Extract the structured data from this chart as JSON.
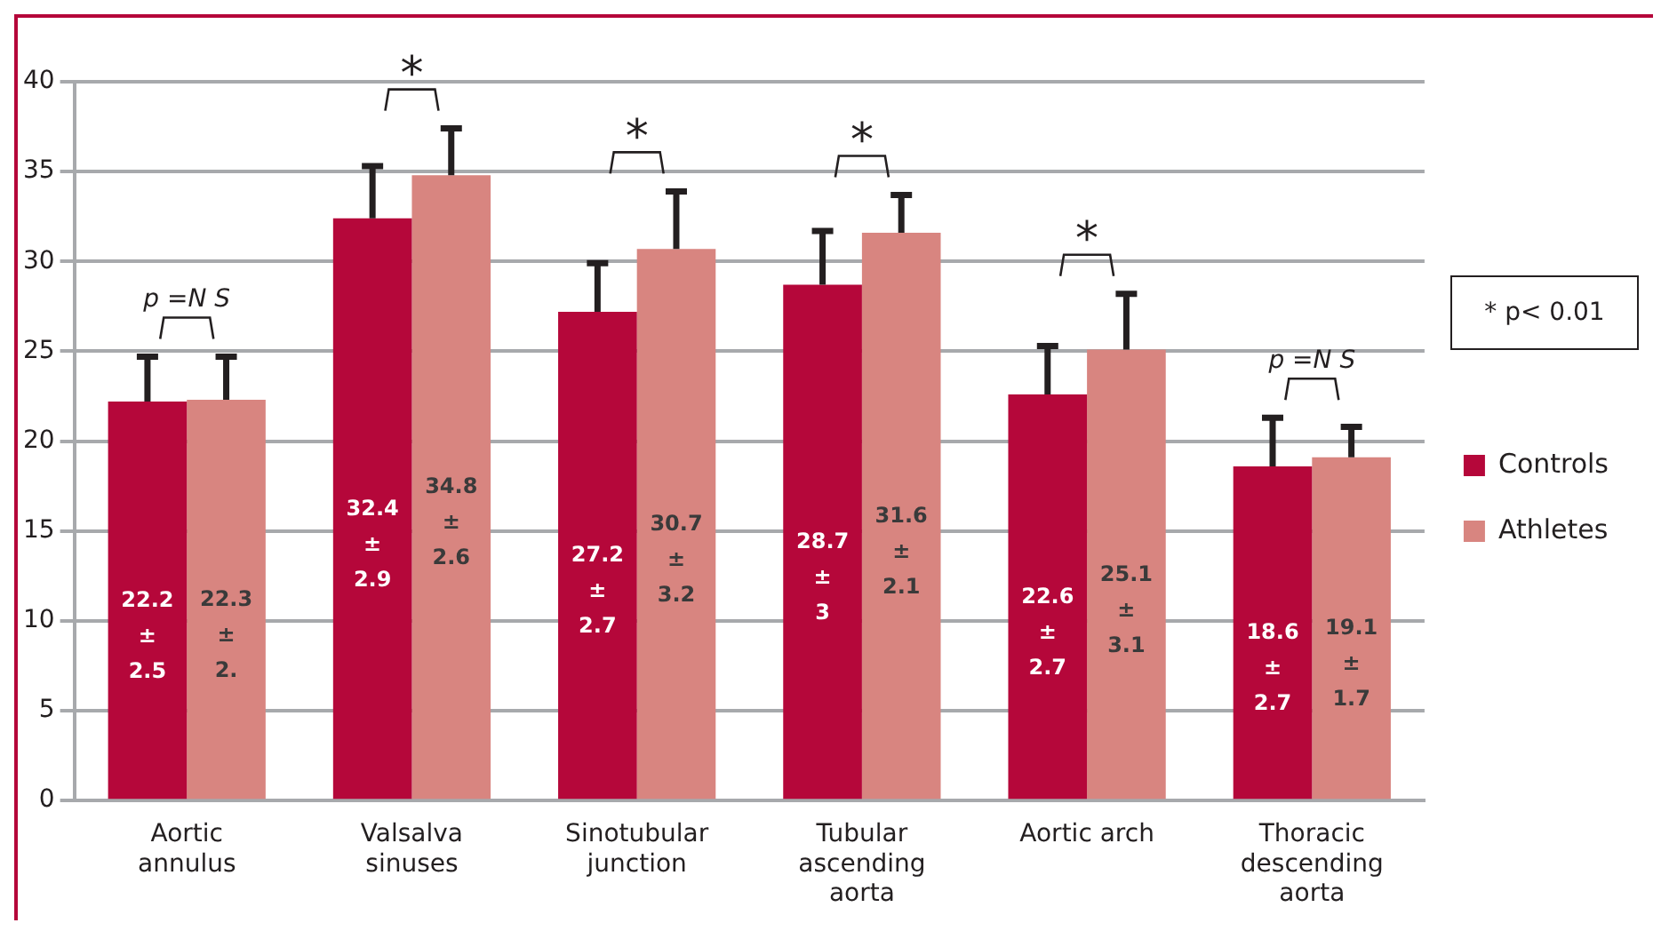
{
  "chart_data": {
    "type": "bar",
    "categories": [
      "Aortic annulus",
      "Valsalva sinuses",
      "Sinotubular junction",
      "Tubular ascending aorta",
      "Aortic arch",
      "Thoracic descending aorta"
    ],
    "series": [
      {
        "name": "Controls",
        "color": "#b5073a",
        "values": [
          22.2,
          32.4,
          27.2,
          28.7,
          22.6,
          18.6
        ],
        "errors": [
          [
            22.2,
            24.7
          ],
          [
            32.4,
            35.3
          ],
          [
            27.2,
            29.9
          ],
          [
            28.7,
            31.7
          ],
          [
            22.6,
            25.3
          ],
          [
            18.6,
            21.3
          ]
        ],
        "value_labels": [
          "22.2 ± 2.5",
          "32.4 ± 2.9",
          "27.2 ± 2.7",
          "28.7 ± 3",
          "22.6 ± 2.7",
          "18.6 ± 2.7"
        ]
      },
      {
        "name": "Athletes",
        "color": "#d88580",
        "values": [
          22.3,
          34.8,
          30.7,
          31.6,
          25.1,
          19.1
        ],
        "errors": [
          [
            22.3,
            24.7
          ],
          [
            34.8,
            37.4
          ],
          [
            30.7,
            33.9
          ],
          [
            31.6,
            33.7
          ],
          [
            25.1,
            28.2
          ],
          [
            19.1,
            20.8
          ]
        ],
        "value_labels": [
          "22.3 ± 2.",
          "34.8 ± 2.6",
          "30.7 ± 3.2",
          "31.6 ± 2.1",
          "25.1 ± 3.1",
          "19.1 ± 1.7"
        ]
      }
    ],
    "ylim": [
      0,
      40
    ],
    "yticks": [
      0,
      5,
      10,
      15,
      20,
      25,
      30,
      35,
      40
    ],
    "grid": "y",
    "legend": "right",
    "annotations": [
      "p =N S",
      "*",
      "*",
      "*",
      "*",
      "p =N S",
      "* p< 0.01"
    ]
  }
}
